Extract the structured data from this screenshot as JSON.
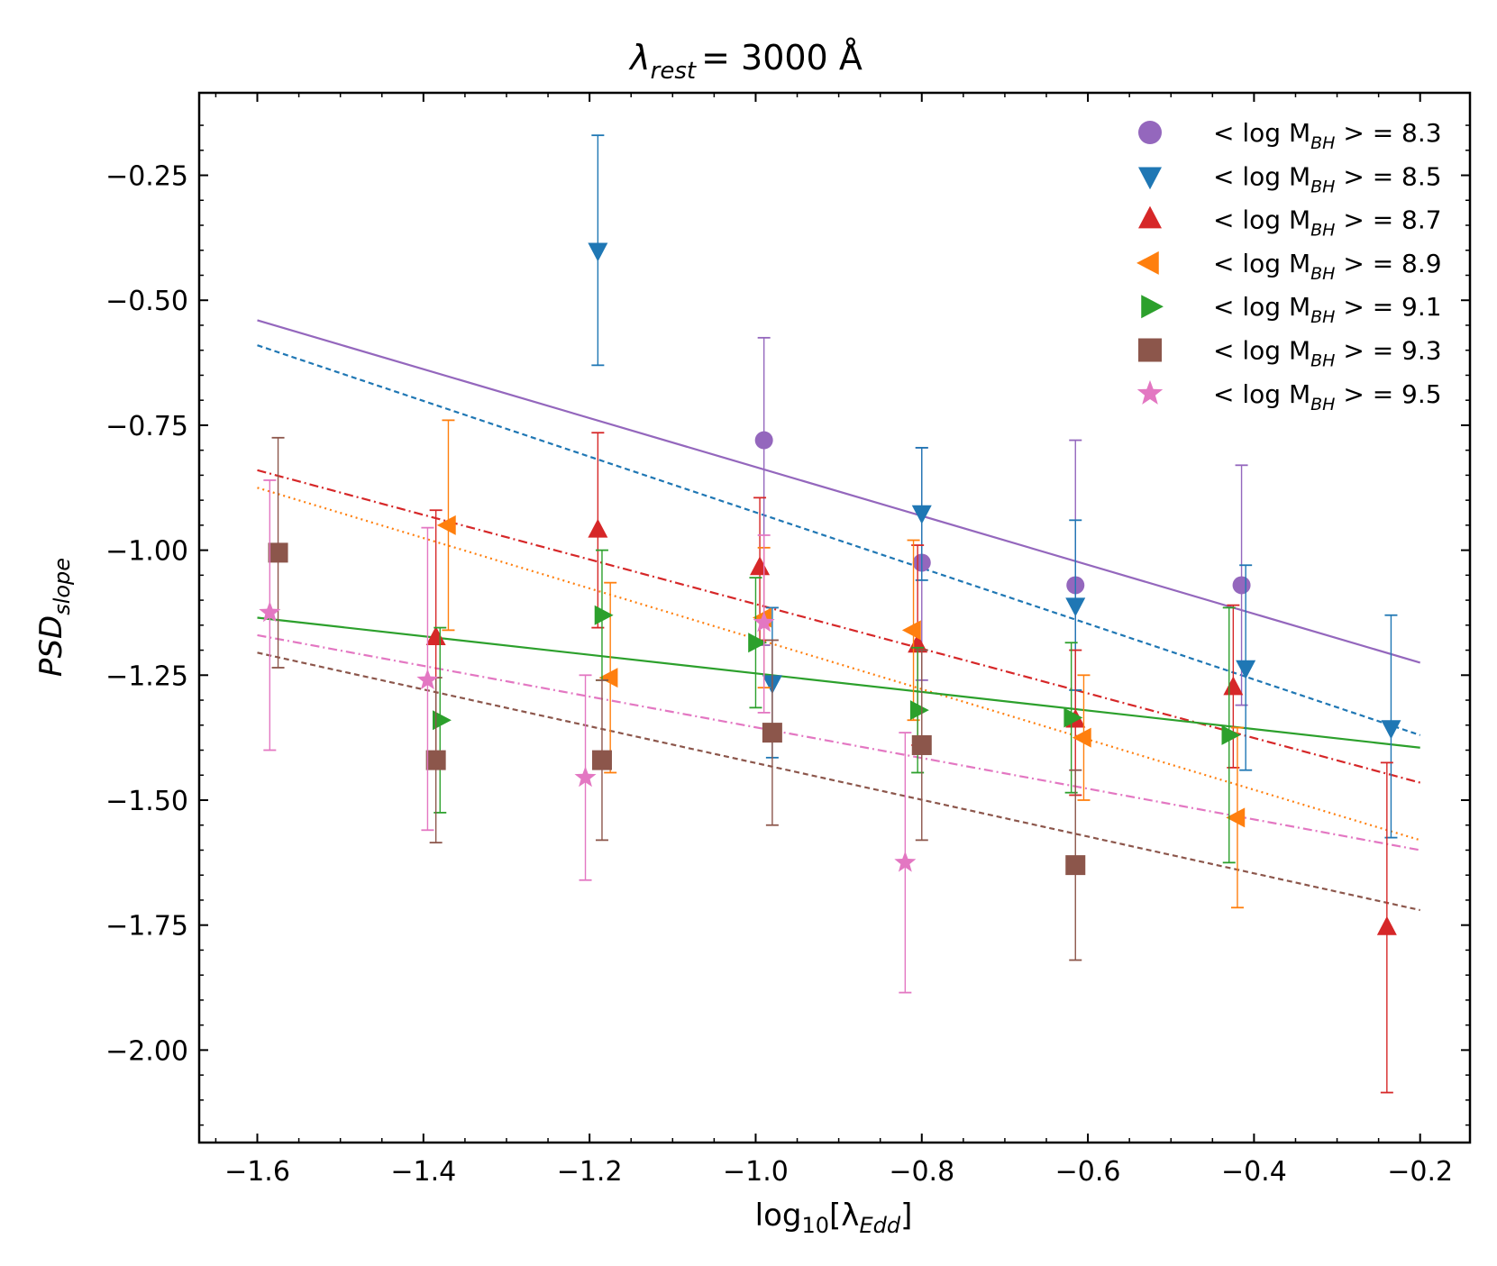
{
  "chart_data": {
    "type": "scatter",
    "title": {
      "pre": "λ",
      "sub": "rest",
      "post": "=  3000 Å"
    },
    "xlabel": {
      "pre": "log",
      "sub": "10",
      "mid": "[λ",
      "sub2": "Edd",
      "post": "]"
    },
    "ylabel": {
      "pre": "PSD",
      "sub": "slope"
    },
    "xlim": [
      -1.67,
      -0.14
    ],
    "ylim": [
      -2.185,
      -0.085
    ],
    "xticks": [
      -1.6,
      -1.4,
      -1.2,
      -1.0,
      -0.8,
      -0.6,
      -0.4,
      -0.2
    ],
    "xtick_labels": [
      "−1.6",
      "−1.4",
      "−1.2",
      "−1.0",
      "−0.8",
      "−0.6",
      "−0.4",
      "−0.2"
    ],
    "yticks": [
      -0.25,
      -0.5,
      -0.75,
      -1.0,
      -1.25,
      -1.5,
      -1.75,
      -2.0
    ],
    "ytick_labels": [
      "−0.25",
      "−0.50",
      "−0.75",
      "−1.00",
      "−1.25",
      "−1.50",
      "−1.75",
      "−2.00"
    ],
    "legend_position": "top-right",
    "series": [
      {
        "name": "8.3",
        "label_pre": "< log M",
        "label_sub": "BH",
        "label_post": " > = 8.3",
        "color": "#9467bd",
        "marker": "circle",
        "linestyle": "solid",
        "fit": [
          [
            -1.6,
            -0.54
          ],
          [
            -0.2,
            -1.225
          ]
        ],
        "points": [
          {
            "x": -0.99,
            "y": -0.78,
            "lo": -1.19,
            "hi": -0.575
          },
          {
            "x": -0.8,
            "y": -1.025,
            "lo": -1.26,
            "hi": -0.795
          },
          {
            "x": -0.615,
            "y": -1.07,
            "lo": -1.35,
            "hi": -0.78
          },
          {
            "x": -0.415,
            "y": -1.07,
            "lo": -1.31,
            "hi": -0.83
          }
        ]
      },
      {
        "name": "8.5",
        "label_pre": "< log M",
        "label_sub": "BH",
        "label_post": " > = 8.5",
        "color": "#1f77b4",
        "marker": "triangle-down",
        "linestyle": "dashed",
        "fit": [
          [
            -1.6,
            -0.59
          ],
          [
            -0.2,
            -1.37
          ]
        ],
        "points": [
          {
            "x": -1.19,
            "y": -0.4,
            "lo": -0.63,
            "hi": -0.17
          },
          {
            "x": -0.98,
            "y": -1.265,
            "lo": -1.415,
            "hi": -1.115
          },
          {
            "x": -0.8,
            "y": -0.925,
            "lo": -1.06,
            "hi": -0.795
          },
          {
            "x": -0.615,
            "y": -1.11,
            "lo": -1.28,
            "hi": -0.94
          },
          {
            "x": -0.41,
            "y": -1.235,
            "lo": -1.44,
            "hi": -1.03
          },
          {
            "x": -0.235,
            "y": -1.355,
            "lo": -1.575,
            "hi": -1.13
          }
        ]
      },
      {
        "name": "8.7",
        "label_pre": "< log M",
        "label_sub": "BH",
        "label_post": " > = 8.7",
        "color": "#d62728",
        "marker": "triangle-up",
        "linestyle": "dashdot",
        "fit": [
          [
            -1.6,
            -0.84
          ],
          [
            -0.2,
            -1.465
          ]
        ],
        "points": [
          {
            "x": -1.385,
            "y": -1.175,
            "lo": -1.42,
            "hi": -0.92
          },
          {
            "x": -1.19,
            "y": -0.96,
            "lo": -1.155,
            "hi": -0.765
          },
          {
            "x": -0.995,
            "y": -1.035,
            "lo": -1.18,
            "hi": -0.895
          },
          {
            "x": -0.805,
            "y": -1.19,
            "lo": -1.39,
            "hi": -0.99
          },
          {
            "x": -0.615,
            "y": -1.34,
            "lo": -1.49,
            "hi": -1.2
          },
          {
            "x": -0.425,
            "y": -1.275,
            "lo": -1.435,
            "hi": -1.11
          },
          {
            "x": -0.24,
            "y": -1.755,
            "lo": -2.085,
            "hi": -1.425
          }
        ]
      },
      {
        "name": "8.9",
        "label_pre": "< log M",
        "label_sub": "BH",
        "label_post": " > = 8.9",
        "color": "#ff7f0e",
        "marker": "triangle-left",
        "linestyle": "dotted",
        "fit": [
          [
            -1.6,
            -0.875
          ],
          [
            -0.2,
            -1.58
          ]
        ],
        "points": [
          {
            "x": -1.37,
            "y": -0.95,
            "lo": -1.16,
            "hi": -0.74
          },
          {
            "x": -1.175,
            "y": -1.255,
            "lo": -1.445,
            "hi": -1.065
          },
          {
            "x": -0.99,
            "y": -1.135,
            "lo": -1.275,
            "hi": -0.995
          },
          {
            "x": -0.81,
            "y": -1.16,
            "lo": -1.34,
            "hi": -0.98
          },
          {
            "x": -0.605,
            "y": -1.375,
            "lo": -1.5,
            "hi": -1.25
          },
          {
            "x": -0.42,
            "y": -1.535,
            "lo": -1.715,
            "hi": -1.355
          }
        ]
      },
      {
        "name": "9.1",
        "label_pre": "< log M",
        "label_sub": "BH",
        "label_post": " > = 9.1",
        "color": "#2ca02c",
        "marker": "triangle-right",
        "linestyle": "solid",
        "fit": [
          [
            -1.6,
            -1.135
          ],
          [
            -0.2,
            -1.395
          ]
        ],
        "points": [
          {
            "x": -1.38,
            "y": -1.34,
            "lo": -1.525,
            "hi": -1.155
          },
          {
            "x": -1.185,
            "y": -1.13,
            "lo": -1.26,
            "hi": -1.0
          },
          {
            "x": -1.0,
            "y": -1.185,
            "lo": -1.315,
            "hi": -1.055
          },
          {
            "x": -0.805,
            "y": -1.32,
            "lo": -1.445,
            "hi": -1.195
          },
          {
            "x": -0.62,
            "y": -1.335,
            "lo": -1.485,
            "hi": -1.185
          },
          {
            "x": -0.43,
            "y": -1.37,
            "lo": -1.625,
            "hi": -1.115
          }
        ]
      },
      {
        "name": "9.3",
        "label_pre": "< log M",
        "label_sub": "BH",
        "label_post": " > = 9.3",
        "color": "#8c564b",
        "marker": "square",
        "linestyle": "dashed",
        "fit": [
          [
            -1.6,
            -1.205
          ],
          [
            -0.2,
            -1.72
          ]
        ],
        "points": [
          {
            "x": -1.575,
            "y": -1.005,
            "lo": -1.235,
            "hi": -0.775
          },
          {
            "x": -1.385,
            "y": -1.42,
            "lo": -1.585,
            "hi": -1.255
          },
          {
            "x": -1.185,
            "y": -1.42,
            "lo": -1.58,
            "hi": -1.26
          },
          {
            "x": -0.98,
            "y": -1.365,
            "lo": -1.55,
            "hi": -1.18
          },
          {
            "x": -0.8,
            "y": -1.39,
            "lo": -1.58,
            "hi": -1.2
          },
          {
            "x": -0.615,
            "y": -1.63,
            "lo": -1.82,
            "hi": -1.44
          }
        ]
      },
      {
        "name": "9.5",
        "label_pre": "< log M",
        "label_sub": "BH",
        "label_post": " > = 9.5",
        "color": "#e377c2",
        "marker": "star",
        "linestyle": "dashdot",
        "fit": [
          [
            -1.6,
            -1.17
          ],
          [
            -0.2,
            -1.6
          ]
        ],
        "points": [
          {
            "x": -1.585,
            "y": -1.125,
            "lo": -1.4,
            "hi": -0.86
          },
          {
            "x": -1.395,
            "y": -1.26,
            "lo": -1.56,
            "hi": -0.955
          },
          {
            "x": -1.205,
            "y": -1.455,
            "lo": -1.66,
            "hi": -1.25
          },
          {
            "x": -0.99,
            "y": -1.145,
            "lo": -1.325,
            "hi": -0.97
          },
          {
            "x": -0.82,
            "y": -1.625,
            "lo": -1.885,
            "hi": -1.365
          }
        ]
      }
    ]
  }
}
